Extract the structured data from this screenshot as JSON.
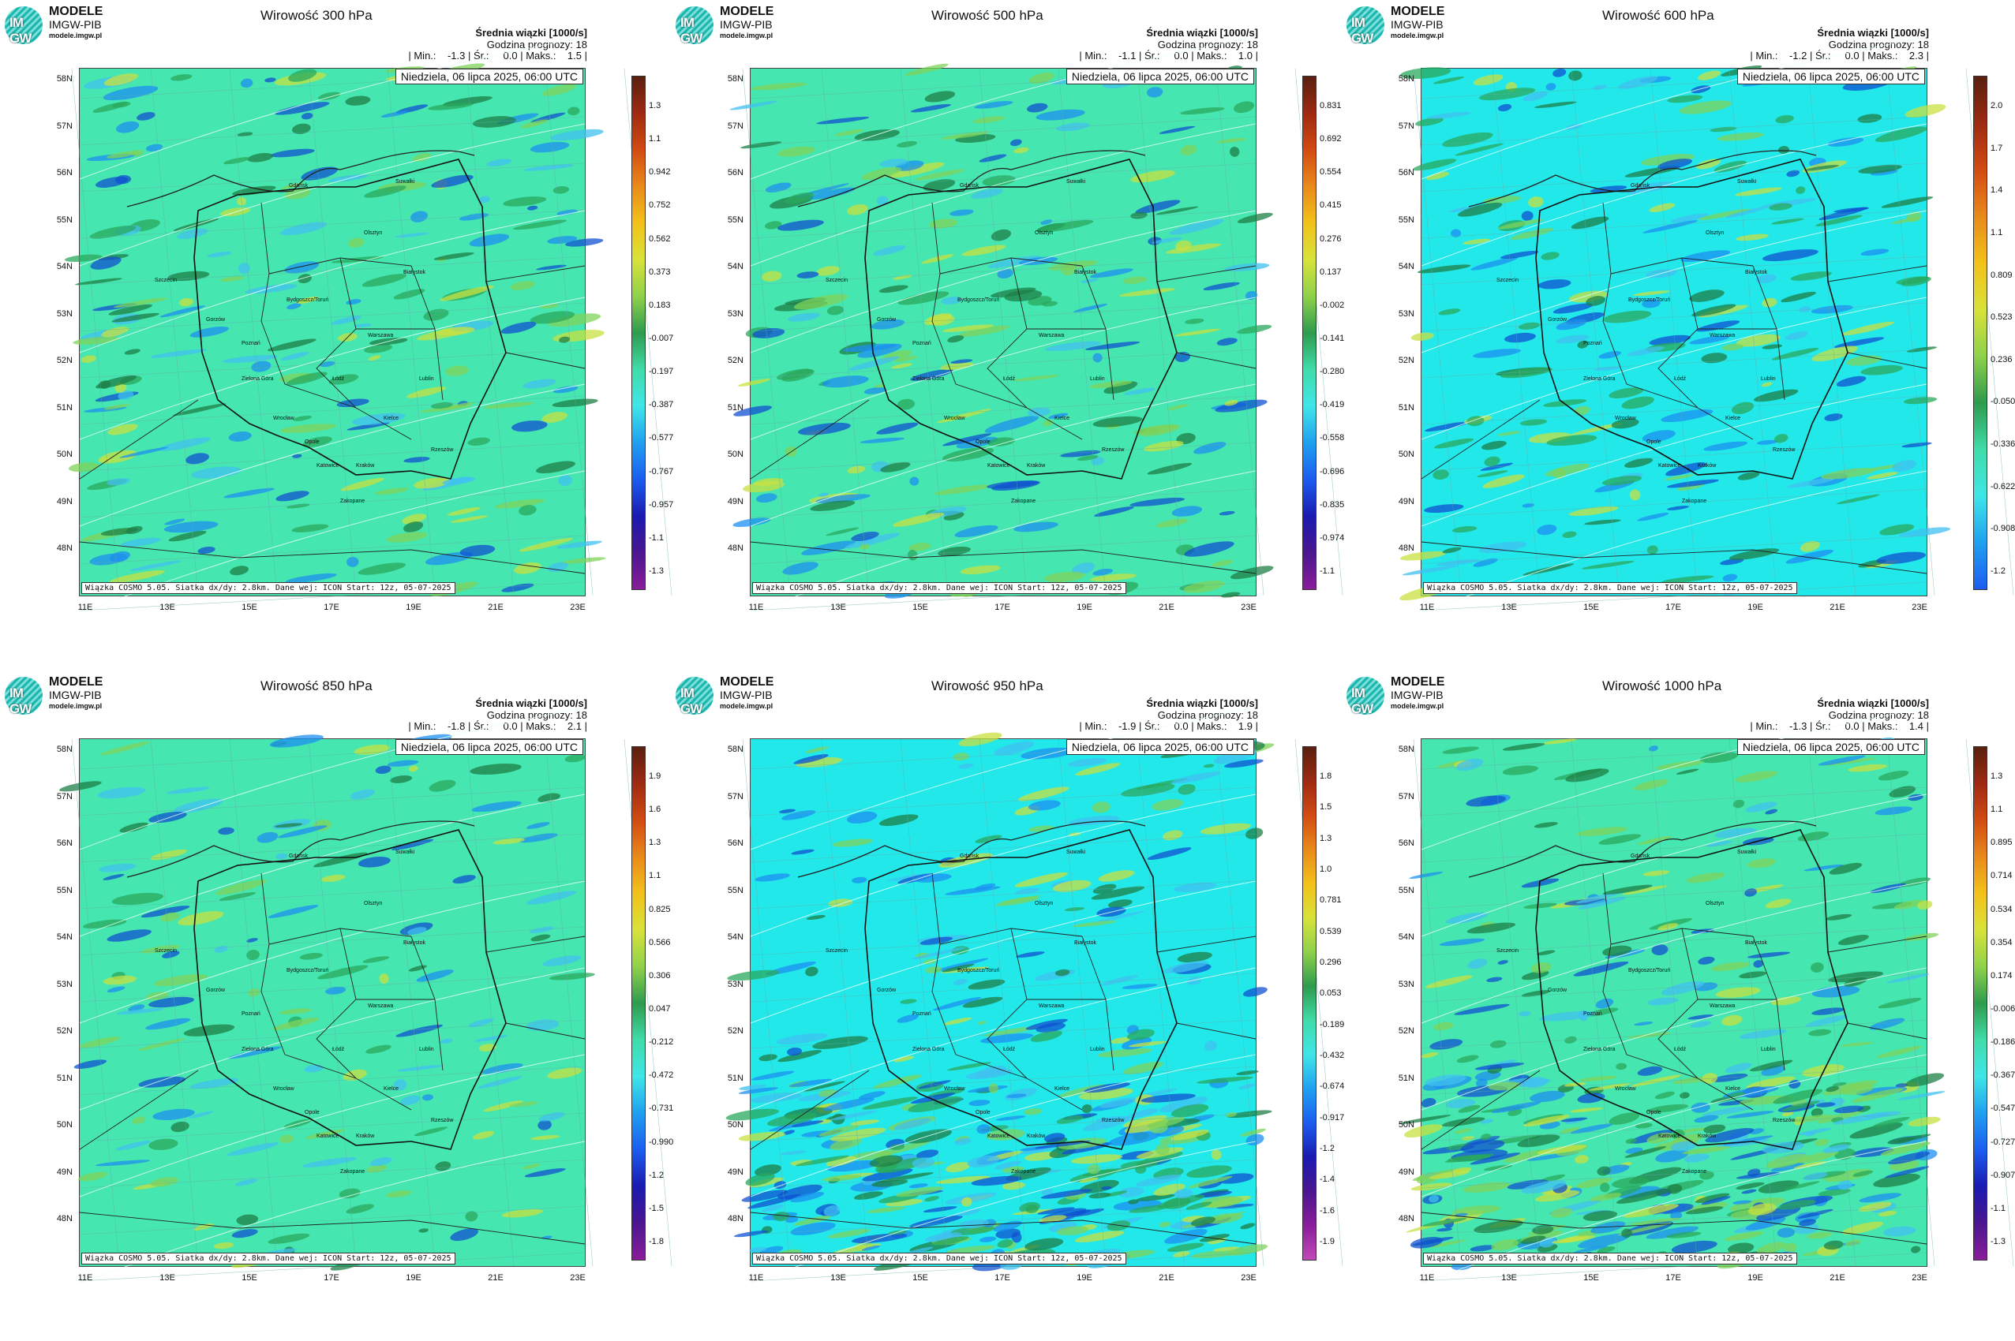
{
  "logo": {
    "line1": "MODELE",
    "line2": "IMGW-PIB",
    "line3": "modele.imgw.pl",
    "mark": "IM GW"
  },
  "common": {
    "mean_label": "Średnia wiązki [1000/s]",
    "forecast_hour": "Godzina prognozy: 18",
    "date": "Niedziela, 06 lipca 2025, 06:00 UTC",
    "footer": "Wiązka COSMO 5.05. Siatka dx/dy: 2.8km. Dane wej: ICON Start: 12z, 05-07-2025",
    "lat_labels": [
      "58N",
      "57N",
      "56N",
      "55N",
      "54N",
      "53N",
      "52N",
      "51N",
      "50N",
      "49N",
      "48N"
    ],
    "lon_labels": [
      "11E",
      "13E",
      "15E",
      "17E",
      "19E",
      "21E",
      "23E"
    ],
    "cities": [
      "Gdańsk",
      "Suwałki",
      "Olsztyn",
      "Szczecin",
      "Bydgoszcz/Toruń",
      "Białystok",
      "Gorzów",
      "Poznań",
      "Warszawa",
      "Zielona Góra",
      "Łódź",
      "Lublin",
      "Wrocław",
      "Kielce",
      "Opole",
      "Rzeszów",
      "Katowice",
      "Kraków",
      "Zakopane"
    ]
  },
  "panels": [
    {
      "title": "Wirowość 300 hPa",
      "stats": "| Min.:    -1.3 | Śr.:     0.0 | Maks.:    1.5 |",
      "bg": "#45e6b0",
      "scale": [
        "1.3",
        "1.1",
        "0.942",
        "0.752",
        "0.562",
        "0.373",
        "0.183",
        "-0.007",
        "-0.197",
        "-0.387",
        "-0.577",
        "-0.767",
        "-0.957",
        "-1.1",
        "-1.3"
      ]
    },
    {
      "title": "Wirowość 500 hPa",
      "stats": "| Min.:    -1.1 | Śr.:     0.0 | Maks.:    1.0 |",
      "bg": "#45e6b0",
      "scale": [
        "0.831",
        "0.692",
        "0.554",
        "0.415",
        "0.276",
        "0.137",
        "-0.002",
        "-0.141",
        "-0.280",
        "-0.419",
        "-0.558",
        "-0.696",
        "-0.835",
        "-0.974",
        "-1.1"
      ]
    },
    {
      "title": "Wirowość 600 hPa",
      "stats": "| Min.:    -1.2 | Śr.:     0.0 | Maks.:    2.3 |",
      "bg": "#22e8ea",
      "scale": [
        "2.0",
        "1.7",
        "1.4",
        "1.1",
        "0.809",
        "0.523",
        "0.236",
        "-0.050",
        "-0.336",
        "-0.622",
        "-0.908",
        "-1.2"
      ]
    },
    {
      "title": "Wirowość 850 hPa",
      "stats": "| Min.:    -1.8 | Śr.:     0.0 | Maks.:    2.1 |",
      "bg": "#45e6b0",
      "scale": [
        "1.9",
        "1.6",
        "1.3",
        "1.1",
        "0.825",
        "0.566",
        "0.306",
        "0.047",
        "-0.212",
        "-0.472",
        "-0.731",
        "-0.990",
        "-1.2",
        "-1.5",
        "-1.8"
      ]
    },
    {
      "title": "Wirowość 950 hPa",
      "stats": "| Min.:    -1.9 | Śr.:     0.0 | Maks.:    1.9 |",
      "bg": "#22e8ea",
      "scale": [
        "1.8",
        "1.5",
        "1.3",
        "1.0",
        "0.781",
        "0.539",
        "0.296",
        "0.053",
        "-0.189",
        "-0.432",
        "-0.674",
        "-0.917",
        "-1.2",
        "-1.4",
        "-1.6",
        "-1.9"
      ]
    },
    {
      "title": "Wirowość 1000 hPa",
      "stats": "| Min.:    -1.3 | Śr.:     0.0 | Maks.:    1.4 |",
      "bg": "#45e6b0",
      "scale": [
        "1.3",
        "1.1",
        "0.895",
        "0.714",
        "0.534",
        "0.354",
        "0.174",
        "-0.006",
        "-0.186",
        "-0.367",
        "-0.547",
        "-0.727",
        "-0.907",
        "-1.1",
        "-1.3"
      ]
    }
  ]
}
